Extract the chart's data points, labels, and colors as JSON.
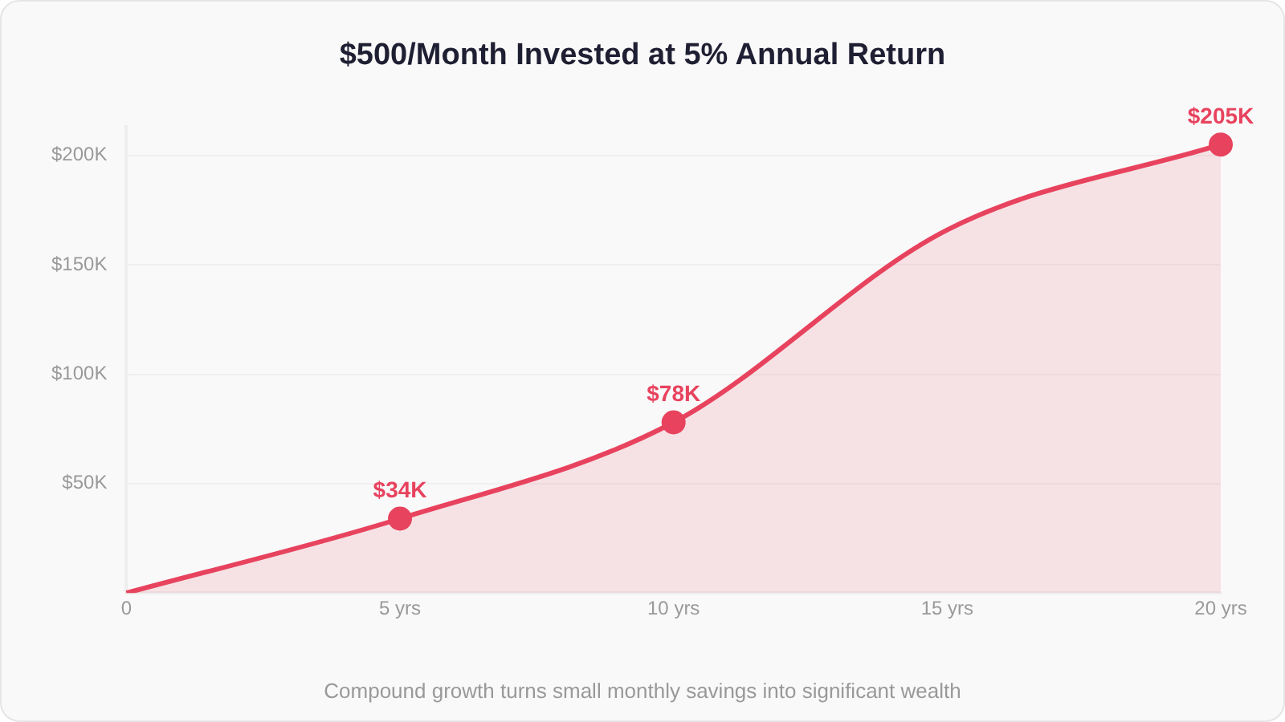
{
  "chart_data": {
    "type": "area",
    "title": "$500/Month Invested at 5% Annual Return",
    "categories": [
      "0",
      "5 yrs",
      "10 yrs",
      "15 yrs",
      "20 yrs"
    ],
    "series": [
      {
        "color": "#e8435e",
        "values": [
          0,
          34,
          78,
          166,
          205
        ],
        "value_labels": [
          null,
          "$34K",
          "$78K",
          null,
          "$205K"
        ]
      }
    ],
    "ylim": [
      0,
      213
    ],
    "yticks": [
      {
        "value": 0,
        "label": null
      },
      {
        "value": 50,
        "label": "$50K"
      },
      {
        "value": 100,
        "label": "$100K"
      },
      {
        "value": 150,
        "label": "$150K"
      },
      {
        "value": 200,
        "label": "$200K"
      }
    ],
    "grid": "y",
    "legend": false,
    "marker": "circle",
    "annotations": [
      "Compound growth turns small monthly savings into significant wealth"
    ]
  }
}
